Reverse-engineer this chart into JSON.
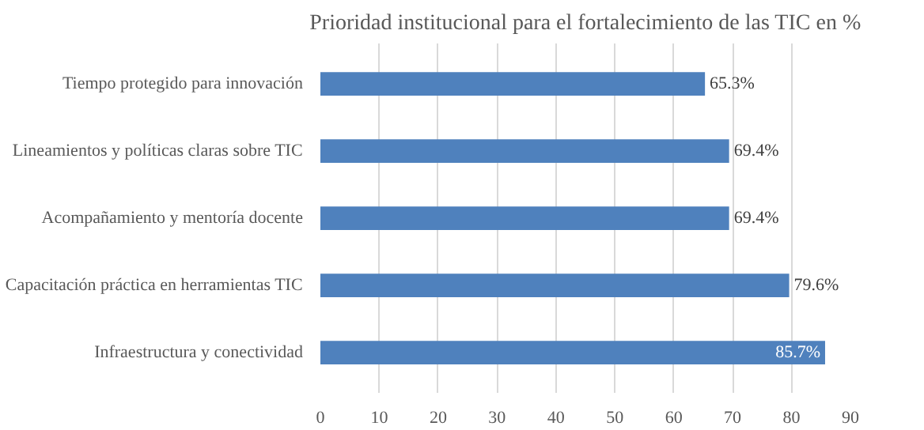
{
  "chart_data": {
    "type": "bar",
    "orientation": "horizontal",
    "title": "Prioridad institucional para el fortalecimiento de las TIC en %",
    "categories": [
      "Tiempo protegido para innovación",
      "Lineamientos y políticas claras sobre TIC",
      "Acompañamiento y mentoría docente",
      "Capacitación práctica en herramientas TIC",
      "Infraestructura y conectividad"
    ],
    "values": [
      65.3,
      69.4,
      69.4,
      79.6,
      85.7
    ],
    "value_labels": [
      "65.3%",
      "69.4%",
      "69.4%",
      "79.6%",
      "85.7%"
    ],
    "color": "#4f81bd",
    "xlim": [
      0,
      90
    ],
    "xticks": [
      0,
      10,
      20,
      30,
      40,
      50,
      60,
      70,
      80,
      90
    ],
    "grid": "x"
  }
}
